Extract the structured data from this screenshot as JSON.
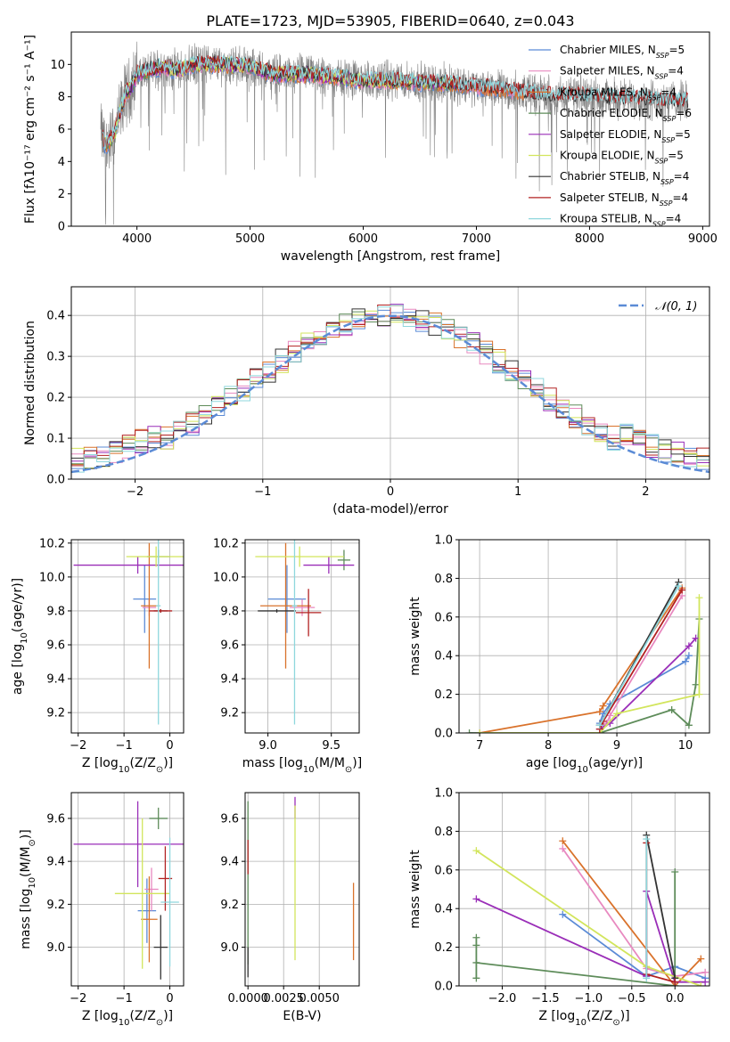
{
  "figure": {
    "title": "PLATE=1723, MJD=53905, FIBERID=0640, z=0.043"
  },
  "colors": {
    "data": "#808080",
    "gauss": "#5b8bd6",
    "models": [
      "#5b8bd6",
      "#e889c0",
      "#d9722b",
      "#5e8c5a",
      "#9a2eb8",
      "#d2e55c",
      "#333333",
      "#b22222",
      "#8fd7dd"
    ]
  },
  "chart_data": [
    {
      "type": "line",
      "id": "spectrum",
      "title": "PLATE=1723, MJD=53905, FIBERID=0640, z=0.043",
      "xlabel": "wavelength [Angstrom, rest frame]",
      "ylabel": "Flux [fλ10⁻¹⁷ erg cm⁻² s⁻¹ A⁻¹]",
      "xlim": [
        3420,
        9060
      ],
      "ylim": [
        0,
        12
      ],
      "xticks": [
        4000,
        5000,
        6000,
        7000,
        8000,
        9000
      ],
      "yticks": [
        0,
        2,
        4,
        6,
        8,
        10
      ],
      "grid": false,
      "legend_position": "upper-right",
      "legend": [
        "Chabrier MILES, N_SSP=5",
        "Salpeter MILES, N_SSP=4",
        "Kroupa MILES, N_SSP=4",
        "Chabrier ELODIE, N_SSP=6",
        "Salpeter ELODIE, N_SSP=5",
        "Kroupa ELODIE, N_SSP=5",
        "Chabrier STELIB, N_SSP=4",
        "Salpeter STELIB, N_SSP=4",
        "Kroupa STELIB, N_SSP=4"
      ],
      "data_range": [
        3680,
        8870
      ],
      "model_anchors": {
        "x": [
          3680,
          3720,
          3760,
          3800,
          3850,
          3900,
          3950,
          4000,
          4100,
          4200,
          4300,
          4400,
          4500,
          4700,
          5000,
          5200,
          5500,
          5800,
          6000,
          6200,
          6500,
          6800,
          7000,
          7200,
          7400,
          7600,
          7800,
          8000,
          8300,
          8600,
          8870
        ],
        "y": [
          5.8,
          5.0,
          5.3,
          5.6,
          7.0,
          8.2,
          8.6,
          9.4,
          9.6,
          9.8,
          9.7,
          9.7,
          10.0,
          10.0,
          9.9,
          9.4,
          9.4,
          9.2,
          9.0,
          9.0,
          8.9,
          8.8,
          8.6,
          8.5,
          8.3,
          8.1,
          8.1,
          8.0,
          7.9,
          7.8,
          7.7
        ]
      },
      "model_spans": {
        "MILES": [
          3700,
          7420
        ],
        "ELODIE": [
          3700,
          6810
        ],
        "STELIB": [
          3700,
          8870
        ]
      }
    },
    {
      "type": "histogram",
      "id": "residuals",
      "xlabel": "(data-model)/error",
      "ylabel": "Normed distribution",
      "xlim": [
        -2.5,
        2.5
      ],
      "ylim": [
        0,
        0.47
      ],
      "xticks": [
        -2,
        -1,
        0,
        1,
        2
      ],
      "yticks": [
        0.0,
        0.1,
        0.2,
        0.3,
        0.4
      ],
      "grid": true,
      "legend_position": "upper-right",
      "legend": [
        "N(0,1)"
      ],
      "bin_width": 0.1,
      "gaussian": {
        "mean": 0,
        "sigma": 1
      }
    },
    {
      "type": "errorbar",
      "id": "age-vs-Z",
      "xlabel": "Z [log10(Z/Z⊙)]",
      "ylabel": "age [log10(age/yr)]",
      "xlim": [
        -2.15,
        0.3
      ],
      "ylim": [
        9.08,
        10.22
      ],
      "xticks": [
        -2,
        -1,
        0
      ],
      "yticks": [
        9.2,
        9.4,
        9.6,
        9.8,
        10.0,
        10.2
      ],
      "grid": true,
      "points": [
        {
          "model": 0,
          "x": -0.55,
          "xerr": 0.25,
          "y": 9.87,
          "yerr": 0.2
        },
        {
          "model": 1,
          "x": -0.45,
          "xerr": 0.15,
          "y": 9.82,
          "yerr": 0.05
        },
        {
          "model": 2,
          "x": -0.45,
          "xerr": 0.18,
          "y": 9.83,
          "yerr": 0.37
        },
        {
          "model": 3,
          "x": -0.25,
          "xerr": 0.25,
          "y": 10.12,
          "yerr": 0.04
        },
        {
          "model": 4,
          "x": -0.7,
          "xerr": 1.4,
          "y": 10.07,
          "yerr": 0.05
        },
        {
          "model": 5,
          "x": -0.3,
          "xerr": 0.65,
          "y": 10.12,
          "yerr": 0.06
        },
        {
          "model": 6,
          "x": -0.2,
          "xerr": 0.15,
          "y": 9.8,
          "yerr": 0.01
        },
        {
          "model": 7,
          "x": -0.2,
          "xerr": 0.25,
          "y": 9.8,
          "yerr": 0.01
        },
        {
          "model": 8,
          "x": -0.25,
          "xerr": 0.05,
          "y": 9.83,
          "yerr": 0.7
        }
      ]
    },
    {
      "type": "errorbar",
      "id": "age-vs-mass",
      "xlabel": "mass [log10(M/M⊙)]",
      "ylabel": "",
      "xlim": [
        8.82,
        9.72
      ],
      "ylim": [
        9.08,
        10.22
      ],
      "xticks": [
        9.0,
        9.5
      ],
      "yticks": [
        9.2,
        9.4,
        9.6,
        9.8,
        10.0,
        10.2
      ],
      "grid": true,
      "points": [
        {
          "model": 0,
          "x": 9.15,
          "xerr": 0.15,
          "y": 9.87,
          "yerr": 0.2
        },
        {
          "model": 1,
          "x": 9.27,
          "xerr": 0.1,
          "y": 9.82,
          "yerr": 0.05
        },
        {
          "model": 2,
          "x": 9.14,
          "xerr": 0.2,
          "y": 9.83,
          "yerr": 0.37
        },
        {
          "model": 3,
          "x": 9.6,
          "xerr": 0.05,
          "y": 10.1,
          "yerr": 0.06
        },
        {
          "model": 4,
          "x": 9.48,
          "xerr": 0.2,
          "y": 10.07,
          "yerr": 0.05
        },
        {
          "model": 5,
          "x": 9.25,
          "xerr": 0.35,
          "y": 10.12,
          "yerr": 0.06
        },
        {
          "model": 6,
          "x": 9.07,
          "xerr": 0.15,
          "y": 9.8,
          "yerr": 0.01
        },
        {
          "model": 7,
          "x": 9.32,
          "xerr": 0.1,
          "y": 9.79,
          "yerr": 0.14
        },
        {
          "model": 8,
          "x": 9.21,
          "xerr": 0.02,
          "y": 9.83,
          "yerr": 0.7
        }
      ]
    },
    {
      "type": "line",
      "id": "weight-vs-age",
      "xlabel": "age [log10(age/yr)]",
      "ylabel": "mass weight",
      "xlim": [
        6.7,
        10.35
      ],
      "ylim": [
        0,
        1.0
      ],
      "xticks": [
        7,
        8,
        9,
        10
      ],
      "yticks": [
        0.0,
        0.2,
        0.4,
        0.6,
        0.8,
        1.0
      ],
      "grid": true,
      "series": [
        {
          "model": 0,
          "x": [
            8.75,
            8.8,
            8.9,
            10.0,
            10.05
          ],
          "y": [
            0.05,
            0.1,
            0.15,
            0.37,
            0.4
          ]
        },
        {
          "model": 1,
          "x": [
            8.75,
            8.85,
            8.9,
            9.95
          ],
          "y": [
            0.02,
            0.05,
            0.09,
            0.71
          ]
        },
        {
          "model": 2,
          "x": [
            7.0,
            8.75,
            8.8,
            9.95
          ],
          "y": [
            0.0,
            0.11,
            0.14,
            0.75
          ]
        },
        {
          "model": 3,
          "x": [
            6.85,
            8.75,
            9.8,
            10.05,
            10.15,
            10.2
          ],
          "y": [
            0.0,
            0.0,
            0.12,
            0.04,
            0.25,
            0.59
          ]
        },
        {
          "model": 4,
          "x": [
            8.75,
            8.9,
            10.05,
            10.15
          ],
          "y": [
            0.02,
            0.05,
            0.45,
            0.49
          ]
        },
        {
          "model": 5,
          "x": [
            7.0,
            8.75,
            9.0,
            10.2,
            10.2
          ],
          "y": [
            0.0,
            0.0,
            0.1,
            0.2,
            0.7
          ]
        },
        {
          "model": 6,
          "x": [
            8.75,
            9.9
          ],
          "y": [
            0.04,
            0.78
          ]
        },
        {
          "model": 7,
          "x": [
            8.75,
            8.8,
            9.95
          ],
          "y": [
            0.02,
            0.06,
            0.74
          ]
        },
        {
          "model": 8,
          "x": [
            8.75,
            9.9
          ],
          "y": [
            0.04,
            0.76
          ]
        }
      ]
    },
    {
      "type": "errorbar",
      "id": "mass-vs-Z",
      "xlabel": "Z [log10(Z/Z⊙)]",
      "ylabel": "mass [log10(M/M⊙)]",
      "xlim": [
        -2.15,
        0.3
      ],
      "ylim": [
        8.82,
        9.72
      ],
      "xticks": [
        -2,
        -1,
        0
      ],
      "yticks": [
        9.0,
        9.2,
        9.4,
        9.6
      ],
      "grid": true,
      "points": [
        {
          "model": 0,
          "x": -0.5,
          "xerr": 0.2,
          "y": 9.17,
          "yerr": 0.15
        },
        {
          "model": 1,
          "x": -0.4,
          "xerr": 0.15,
          "y": 9.27,
          "yerr": 0.1
        },
        {
          "model": 2,
          "x": -0.45,
          "xerr": 0.18,
          "y": 9.13,
          "yerr": 0.2
        },
        {
          "model": 3,
          "x": -0.25,
          "xerr": 0.2,
          "y": 9.6,
          "yerr": 0.05
        },
        {
          "model": 4,
          "x": -0.7,
          "xerr": 1.4,
          "y": 9.48,
          "yerr": 0.2
        },
        {
          "model": 5,
          "x": -0.6,
          "xerr": 0.6,
          "y": 9.25,
          "yerr": 0.35
        },
        {
          "model": 6,
          "x": -0.2,
          "xerr": 0.15,
          "y": 9.0,
          "yerr": 0.15
        },
        {
          "model": 7,
          "x": -0.1,
          "xerr": 0.15,
          "y": 9.32,
          "yerr": 0.15
        },
        {
          "model": 8,
          "x": 0.0,
          "xerr": 0.2,
          "y": 9.21,
          "yerr": 0.3
        }
      ]
    },
    {
      "type": "errorbar",
      "id": "mass-vs-ebv",
      "xlabel": "E(B-V)",
      "ylabel": "",
      "xlim": [
        -0.0002,
        0.0078
      ],
      "ylim": [
        8.82,
        9.72
      ],
      "xticks": [
        0.0,
        0.0025,
        0.005
      ],
      "xticklabels": [
        "0.0000",
        "0.0025",
        "0.0050"
      ],
      "yticks": [
        9.0,
        9.2,
        9.4,
        9.6
      ],
      "grid": true,
      "points": [
        {
          "model": 3,
          "x": 0.0,
          "xerr": 0,
          "y": 9.3,
          "yerr": 0.38
        },
        {
          "model": 7,
          "x": 0.0,
          "xerr": 0,
          "y": 9.42,
          "yerr": 0.08
        },
        {
          "model": 6,
          "x": 0.0,
          "xerr": 0,
          "y": 8.93,
          "yerr": 0.07
        },
        {
          "model": 4,
          "x": 0.0033,
          "xerr": 0,
          "y": 9.65,
          "yerr": 0.05
        },
        {
          "model": 5,
          "x": 0.0033,
          "xerr": 0,
          "y": 9.3,
          "yerr": 0.36
        },
        {
          "model": 2,
          "x": 0.0074,
          "xerr": 0,
          "y": 9.12,
          "yerr": 0.18
        }
      ]
    },
    {
      "type": "line",
      "id": "weight-vs-Z",
      "xlabel": "Z [log10(Z/Z⊙)]",
      "ylabel": "mass weight",
      "xlim": [
        -2.5,
        0.4
      ],
      "ylim": [
        0,
        1.0
      ],
      "xticks": [
        -2.0,
        -1.5,
        -1.0,
        -0.5,
        0.0
      ],
      "yticks": [
        0.0,
        0.2,
        0.4,
        0.6,
        0.8,
        1.0
      ],
      "grid": true,
      "series": [
        {
          "model": 0,
          "x": [
            -1.3,
            -0.33,
            0.0,
            0.35
          ],
          "y": [
            0.37,
            0.05,
            0.1,
            0.04
          ]
        },
        {
          "model": 1,
          "x": [
            -1.3,
            -0.33,
            0.0,
            0.35
          ],
          "y": [
            0.71,
            0.09,
            0.05,
            0.07
          ]
        },
        {
          "model": 2,
          "x": [
            -1.3,
            0.0,
            0.3
          ],
          "y": [
            0.75,
            0.0,
            0.14
          ]
        },
        {
          "model": 3,
          "x": [
            -2.3,
            -2.3,
            -2.3,
            -2.3,
            0.0,
            0.0,
            0.0
          ],
          "y": [
            0.04,
            0.25,
            0.21,
            0.12,
            0.0,
            0.59,
            0.0
          ]
        },
        {
          "model": 4,
          "x": [
            -2.3,
            -0.33,
            -0.33,
            0.0,
            0.35
          ],
          "y": [
            0.45,
            0.05,
            0.49,
            0.02,
            0.02
          ]
        },
        {
          "model": 5,
          "x": [
            -2.3,
            -0.33,
            0.3
          ],
          "y": [
            0.7,
            0.1,
            0.0
          ]
        },
        {
          "model": 6,
          "x": [
            -0.33,
            0.0
          ],
          "y": [
            0.78,
            0.04
          ]
        },
        {
          "model": 7,
          "x": [
            -0.33,
            -0.33,
            0.0
          ],
          "y": [
            0.74,
            0.06,
            0.02
          ]
        },
        {
          "model": 8,
          "x": [
            -0.33,
            -0.33
          ],
          "y": [
            0.76,
            0.04
          ]
        }
      ]
    }
  ]
}
